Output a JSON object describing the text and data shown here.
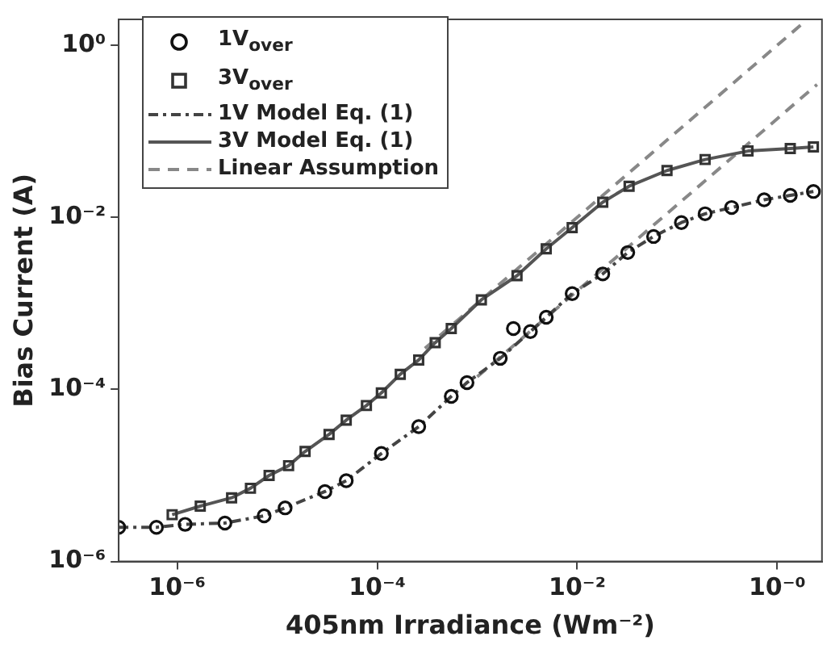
{
  "chart_data": {
    "type": "scatter",
    "xlabel": "405nm Irradiance (Wm⁻²)",
    "ylabel": "Bias Current (A)",
    "log": "xy",
    "grid": false,
    "legend": "top left",
    "xlim": [
      2.6e-07,
      2.8
    ],
    "ylim": [
      1e-06,
      2
    ],
    "xticks": [
      {
        "value": 1e-06,
        "label": "10⁻⁶"
      },
      {
        "value": 0.0001,
        "label": "10⁻⁴"
      },
      {
        "value": 0.01,
        "label": "10⁻²"
      },
      {
        "value": 1,
        "label": "10⁻⁰"
      }
    ],
    "yticks": [
      {
        "value": 1e-06,
        "label": "10⁻⁶"
      },
      {
        "value": 0.0001,
        "label": "10⁻⁴"
      },
      {
        "value": 0.01,
        "label": "10⁻²"
      },
      {
        "value": 1,
        "label": "10⁰"
      }
    ],
    "series": [
      {
        "name": "1V$_{over}$",
        "type": "scatter",
        "marker": "circle",
        "color": "#111111",
        "x": [
          2.6e-07,
          6.2e-07,
          1.2e-06,
          3e-06,
          7.4e-06,
          1.2e-05,
          3e-05,
          4.9e-05,
          0.00011,
          0.00026,
          0.00055,
          0.00079,
          0.0017,
          0.0023,
          0.0034,
          0.0049,
          0.0089,
          0.018,
          0.032,
          0.058,
          0.11,
          0.19,
          0.35,
          0.74,
          1.35,
          2.3
        ],
        "values": [
          2.5e-06,
          2.5e-06,
          2.7e-06,
          2.8e-06,
          3.4e-06,
          4.2e-06,
          6.5e-06,
          8.7e-06,
          1.8e-05,
          3.7e-05,
          8.3e-05,
          0.00012,
          0.00023,
          0.00051,
          0.00047,
          0.00069,
          0.0013,
          0.0022,
          0.0039,
          0.006,
          0.0087,
          0.011,
          0.013,
          0.016,
          0.018,
          0.02
        ]
      },
      {
        "name": "3V$_{over}$",
        "type": "scatter",
        "marker": "square",
        "color": "#333333",
        "x": [
          8.9e-07,
          1.7e-06,
          3.5e-06,
          5.4e-06,
          8.3e-06,
          1.3e-05,
          1.9e-05,
          3.3e-05,
          4.9e-05,
          7.8e-05,
          0.00011,
          0.00017,
          0.00026,
          0.00038,
          0.00055,
          0.0011,
          0.0025,
          0.0049,
          0.0089,
          0.018,
          0.033,
          0.079,
          0.19,
          0.51,
          1.35,
          2.3
        ],
        "values": [
          3.5e-06,
          4.4e-06,
          5.5e-06,
          7.1e-06,
          1e-05,
          1.3e-05,
          1.9e-05,
          3e-05,
          4.4e-05,
          6.5e-05,
          9.1e-05,
          0.00015,
          0.00022,
          0.00035,
          0.00051,
          0.0011,
          0.0021,
          0.0043,
          0.0076,
          0.015,
          0.023,
          0.035,
          0.047,
          0.059,
          0.063,
          0.066
        ]
      },
      {
        "name": "1V Model Eq. (1)",
        "type": "line",
        "line_style": "dashdot",
        "color": "#444444",
        "x": [
          2.6e-07,
          6.2e-07,
          1.2e-06,
          3e-06,
          7.4e-06,
          1.2e-05,
          3e-05,
          4.9e-05,
          0.00011,
          0.00026,
          0.00055,
          0.00079,
          0.0017,
          0.0034,
          0.0049,
          0.0089,
          0.018,
          0.032,
          0.058,
          0.11,
          0.19,
          0.35,
          0.74,
          1.35,
          2.3
        ],
        "values": [
          2.5e-06,
          2.5e-06,
          2.7e-06,
          2.8e-06,
          3.4e-06,
          4.2e-06,
          6.5e-06,
          8.7e-06,
          1.8e-05,
          3.7e-05,
          8.3e-05,
          0.00012,
          0.00023,
          0.00047,
          0.00069,
          0.0013,
          0.0022,
          0.0039,
          0.006,
          0.0087,
          0.011,
          0.013,
          0.016,
          0.018,
          0.02
        ]
      },
      {
        "name": "3V Model Eq. (1)",
        "type": "line",
        "line_style": "solid",
        "color": "#555555",
        "x": [
          8.9e-07,
          1.7e-06,
          3.5e-06,
          5.4e-06,
          8.3e-06,
          1.3e-05,
          1.9e-05,
          3.3e-05,
          4.9e-05,
          7.8e-05,
          0.00011,
          0.00017,
          0.00026,
          0.00038,
          0.00055,
          0.0011,
          0.0025,
          0.0049,
          0.0089,
          0.018,
          0.033,
          0.079,
          0.19,
          0.51,
          1.35,
          2.3
        ],
        "values": [
          3.5e-06,
          4.4e-06,
          5.5e-06,
          7.1e-06,
          1e-05,
          1.3e-05,
          1.9e-05,
          3e-05,
          4.4e-05,
          6.5e-05,
          9.1e-05,
          0.00015,
          0.00022,
          0.00035,
          0.00051,
          0.0011,
          0.0021,
          0.0043,
          0.0076,
          0.015,
          0.023,
          0.035,
          0.047,
          0.059,
          0.063,
          0.066
        ]
      },
      {
        "name": "Linear Assumption",
        "type": "line",
        "line_style": "dashed",
        "color": "#888888",
        "x": [
          0.0003,
          1.9
        ],
        "values": [
          0.0003,
          1.9
        ]
      },
      {
        "type": "line",
        "line_style": "dashed",
        "color": "#888888",
        "x": [
          0.001,
          2.5
        ],
        "values": [
          0.00014,
          0.35
        ]
      }
    ]
  }
}
